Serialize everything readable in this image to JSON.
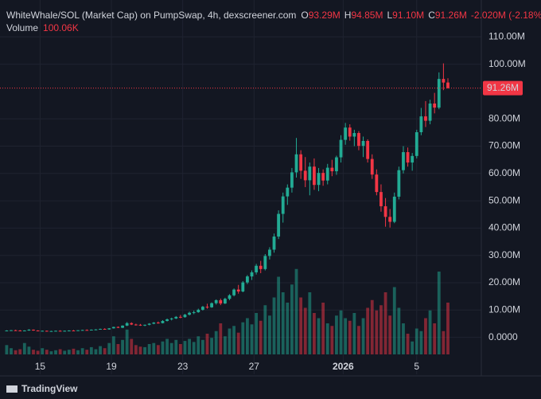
{
  "chart_data": {
    "type": "candlestick",
    "title": "WhiteWhale/SOL (Market Cap) on PumpSwap, 4h, dexscreener.com",
    "legend_keys": [
      "O",
      "H",
      "L",
      "C"
    ],
    "change": "-2.020M (-2.18%)",
    "volume_title": "Volume",
    "last_labels": {
      "ohlc": [
        "93.29M",
        "94.85M",
        "91.10M",
        "91.26M"
      ],
      "volume": "100.06K",
      "price_tag": "91.26M"
    },
    "brand": "TradingView",
    "up_color": "#22ab94",
    "down_color": "#f23645",
    "grid": true,
    "ylim": [
      -7.7,
      123.5
    ],
    "yticks": [
      {
        "value": 110,
        "label": "110.00M"
      },
      {
        "value": 100,
        "label": "100.00M"
      },
      {
        "value": 80,
        "label": "80.00M"
      },
      {
        "value": 70,
        "label": "70.00M"
      },
      {
        "value": 60,
        "label": "60.00M"
      },
      {
        "value": 50,
        "label": "50.00M"
      },
      {
        "value": 40,
        "label": "40.00M"
      },
      {
        "value": 30,
        "label": "30.00M"
      },
      {
        "value": 20,
        "label": "20.00M"
      },
      {
        "value": 10,
        "label": "10.00M"
      },
      {
        "value": 0,
        "label": "0.0000"
      }
    ],
    "xlim": [
      -1.5,
      106.5
    ],
    "xticks": [
      {
        "value": 7.5,
        "label": "15"
      },
      {
        "value": 23.5,
        "label": "19"
      },
      {
        "value": 39.5,
        "label": "23"
      },
      {
        "value": 55.5,
        "label": "27"
      },
      {
        "value": 75.5,
        "label": "2026"
      },
      {
        "value": 92,
        "label": "5"
      }
    ],
    "vlim": [
      0,
      300
    ],
    "ohlc": [
      [
        2.3,
        2.6,
        2.2,
        2.5
      ],
      [
        2.5,
        2.7,
        2.4,
        2.6
      ],
      [
        2.6,
        2.8,
        2.4,
        2.5
      ],
      [
        2.5,
        2.7,
        2.3,
        2.4
      ],
      [
        2.4,
        2.6,
        2.3,
        2.5
      ],
      [
        2.5,
        3.0,
        2.4,
        2.8
      ],
      [
        2.8,
        2.9,
        2.4,
        2.5
      ],
      [
        2.5,
        2.6,
        2.2,
        2.3
      ],
      [
        2.3,
        2.5,
        2.2,
        2.4
      ],
      [
        2.4,
        2.5,
        2.1,
        2.2
      ],
      [
        2.2,
        2.4,
        2.1,
        2.3
      ],
      [
        2.3,
        2.5,
        2.2,
        2.4
      ],
      [
        2.4,
        2.6,
        2.2,
        2.3
      ],
      [
        2.3,
        2.5,
        2.2,
        2.4
      ],
      [
        2.4,
        2.6,
        2.3,
        2.5
      ],
      [
        2.5,
        2.7,
        2.3,
        2.4
      ],
      [
        2.4,
        2.6,
        2.3,
        2.6
      ],
      [
        2.6,
        2.8,
        2.5,
        2.7
      ],
      [
        2.7,
        2.9,
        2.5,
        2.6
      ],
      [
        2.6,
        2.9,
        2.5,
        2.8
      ],
      [
        2.8,
        3.0,
        2.6,
        2.9
      ],
      [
        2.9,
        3.2,
        2.8,
        3.1
      ],
      [
        3.1,
        3.3,
        2.8,
        2.9
      ],
      [
        2.9,
        3.4,
        2.8,
        3.3
      ],
      [
        3.3,
        3.9,
        3.2,
        3.8
      ],
      [
        3.8,
        4.0,
        3.4,
        3.5
      ],
      [
        3.5,
        4.4,
        3.4,
        4.3
      ],
      [
        4.3,
        5.6,
        4.1,
        5.2
      ],
      [
        5.2,
        5.5,
        4.5,
        4.7
      ],
      [
        4.7,
        5.0,
        4.3,
        4.6
      ],
      [
        4.6,
        4.9,
        4.2,
        4.4
      ],
      [
        4.4,
        4.7,
        4.1,
        4.6
      ],
      [
        4.6,
        5.2,
        4.4,
        5.0
      ],
      [
        5.0,
        5.6,
        4.8,
        5.4
      ],
      [
        5.4,
        5.8,
        5.0,
        5.2
      ],
      [
        5.2,
        6.3,
        5.1,
        6.0
      ],
      [
        6.0,
        6.9,
        5.8,
        6.6
      ],
      [
        6.6,
        7.2,
        6.2,
        6.9
      ],
      [
        6.9,
        7.8,
        6.7,
        7.5
      ],
      [
        7.5,
        8.2,
        7.0,
        7.4
      ],
      [
        7.4,
        8.6,
        7.2,
        8.3
      ],
      [
        8.3,
        9.4,
        8.0,
        9.0
      ],
      [
        9.0,
        9.8,
        8.5,
        9.2
      ],
      [
        9.2,
        10.5,
        9.0,
        10.1
      ],
      [
        10.1,
        11.5,
        9.8,
        11.2
      ],
      [
        11.2,
        12.3,
        10.5,
        11.0
      ],
      [
        11.0,
        12.8,
        10.8,
        12.5
      ],
      [
        12.5,
        13.9,
        12.0,
        13.6
      ],
      [
        13.6,
        14.2,
        11.8,
        12.4
      ],
      [
        12.4,
        14.5,
        12.2,
        14.1
      ],
      [
        14.1,
        15.8,
        13.6,
        15.4
      ],
      [
        15.4,
        17.9,
        15.0,
        17.5
      ],
      [
        17.5,
        19.2,
        16.0,
        16.8
      ],
      [
        16.8,
        20.6,
        16.5,
        20.1
      ],
      [
        20.1,
        22.8,
        19.5,
        22.3
      ],
      [
        22.3,
        24.5,
        21.0,
        23.8
      ],
      [
        23.8,
        26.9,
        23.0,
        26.2
      ],
      [
        26.2,
        28.0,
        23.5,
        25.0
      ],
      [
        25.0,
        30.5,
        24.5,
        29.8
      ],
      [
        29.8,
        33.0,
        28.5,
        32.1
      ],
      [
        32.1,
        38.0,
        31.0,
        36.9
      ],
      [
        36.9,
        46.5,
        36.0,
        45.2
      ],
      [
        45.2,
        53.0,
        42.0,
        51.6
      ],
      [
        51.6,
        56.0,
        48.5,
        54.8
      ],
      [
        54.8,
        62.0,
        53.0,
        60.4
      ],
      [
        60.4,
        73.0,
        58.5,
        67.0
      ],
      [
        67.0,
        68.5,
        58.0,
        61.0
      ],
      [
        61.0,
        66.0,
        55.0,
        57.5
      ],
      [
        57.5,
        64.0,
        52.0,
        62.5
      ],
      [
        62.5,
        65.5,
        54.0,
        55.8
      ],
      [
        55.8,
        62.0,
        53.5,
        60.2
      ],
      [
        60.2,
        61.5,
        55.5,
        57.4
      ],
      [
        57.4,
        63.5,
        56.0,
        62.1
      ],
      [
        62.1,
        65.0,
        59.0,
        60.8
      ],
      [
        60.8,
        66.5,
        59.5,
        65.9
      ],
      [
        65.9,
        74.0,
        64.0,
        72.3
      ],
      [
        72.3,
        78.5,
        70.5,
        76.8
      ],
      [
        76.8,
        78.0,
        72.0,
        73.5
      ],
      [
        73.5,
        76.0,
        70.0,
        74.8
      ],
      [
        74.8,
        75.5,
        68.5,
        70.1
      ],
      [
        70.1,
        73.5,
        66.0,
        71.9
      ],
      [
        71.9,
        72.5,
        64.0,
        65.3
      ],
      [
        65.3,
        67.0,
        58.0,
        59.6
      ],
      [
        59.6,
        61.5,
        52.0,
        53.2
      ],
      [
        53.2,
        56.0,
        46.0,
        48.0
      ],
      [
        48.0,
        51.0,
        40.5,
        44.1
      ],
      [
        44.1,
        47.0,
        40.2,
        42.3
      ],
      [
        42.3,
        53.0,
        41.8,
        51.5
      ],
      [
        51.5,
        62.5,
        50.5,
        61.2
      ],
      [
        61.2,
        70.0,
        60.0,
        67.8
      ],
      [
        67.8,
        69.5,
        62.5,
        64.0
      ],
      [
        64.0,
        67.5,
        61.0,
        66.4
      ],
      [
        66.4,
        76.0,
        65.5,
        75.1
      ],
      [
        75.1,
        84.0,
        74.0,
        80.9
      ],
      [
        80.9,
        86.5,
        77.0,
        79.3
      ],
      [
        79.3,
        87.0,
        78.0,
        85.6
      ],
      [
        85.6,
        89.5,
        82.0,
        84.1
      ],
      [
        84.1,
        97.0,
        83.5,
        94.6
      ],
      [
        94.6,
        100.3,
        90.5,
        93.28
      ],
      [
        93.29,
        94.85,
        91.1,
        91.26
      ]
    ],
    "volumes": [
      18,
      12,
      8,
      10,
      22,
      15,
      9,
      7,
      12,
      9,
      6,
      8,
      10,
      7,
      9,
      11,
      8,
      12,
      9,
      14,
      10,
      16,
      12,
      22,
      35,
      20,
      28,
      48,
      30,
      18,
      15,
      14,
      20,
      22,
      18,
      25,
      30,
      22,
      28,
      20,
      26,
      30,
      24,
      35,
      28,
      40,
      32,
      45,
      60,
      35,
      50,
      55,
      42,
      62,
      70,
      58,
      80,
      65,
      95,
      75,
      110,
      150,
      120,
      100,
      135,
      165,
      110,
      90,
      120,
      80,
      70,
      100,
      60,
      55,
      75,
      85,
      70,
      65,
      80,
      55,
      70,
      90,
      105,
      85,
      95,
      120,
      75,
      130,
      90,
      60,
      40,
      25,
      50,
      45,
      70,
      85,
      60,
      160,
      45,
      100.06
    ]
  }
}
